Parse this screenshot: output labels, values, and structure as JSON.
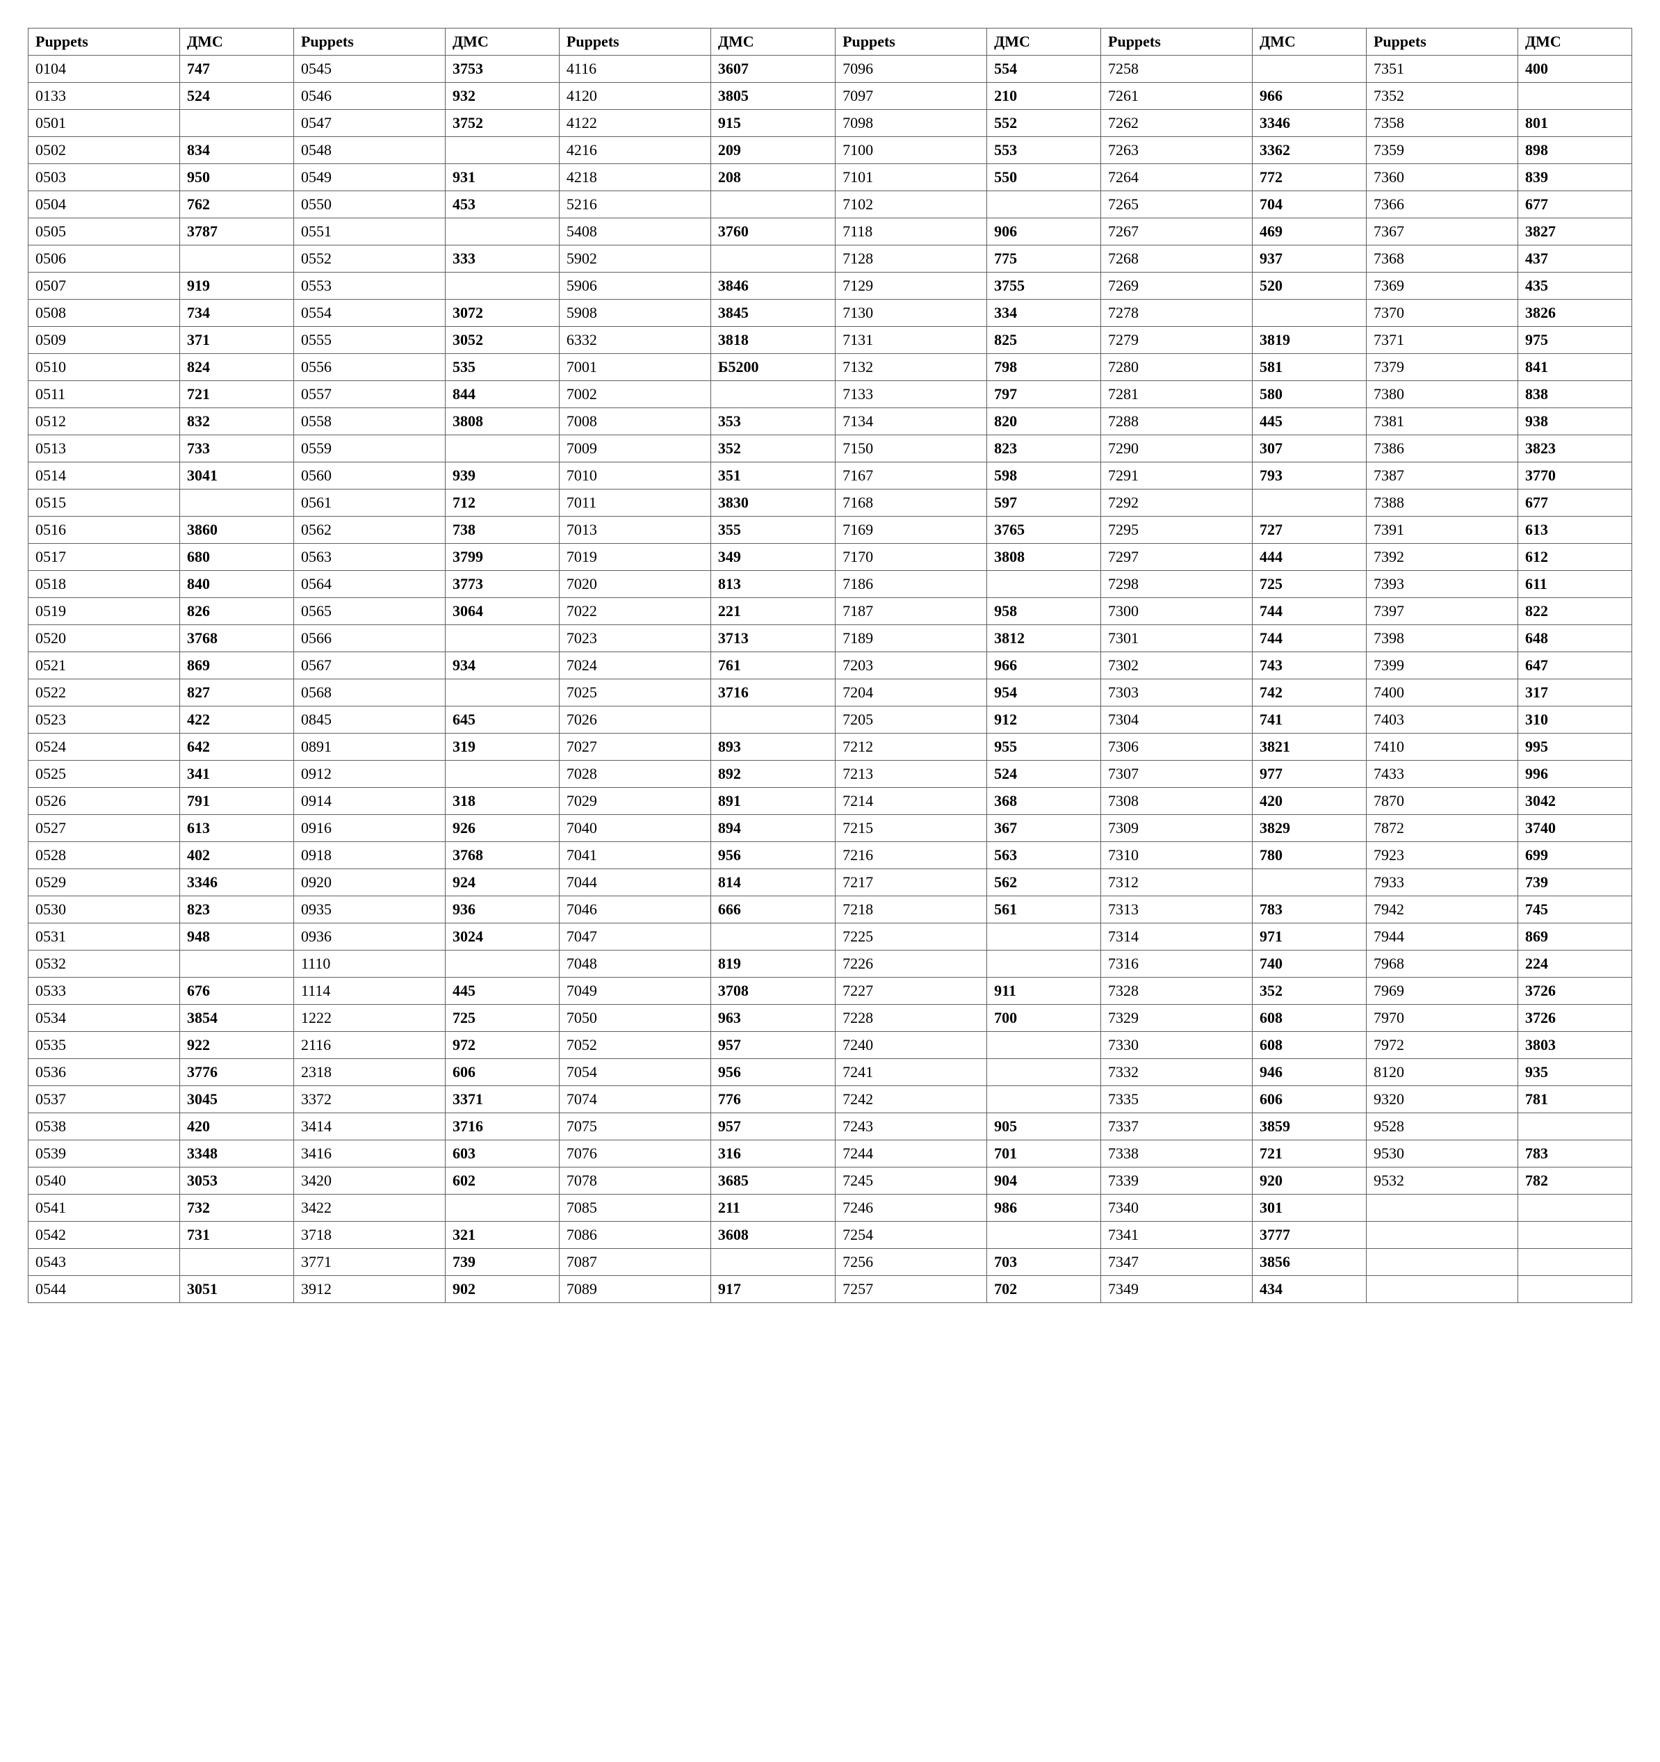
{
  "headers": [
    "Puppets",
    "ДМС",
    "Puppets",
    "ДМС",
    "Puppets",
    "ДМС",
    "Puppets",
    "ДМС",
    "Puppets",
    "ДМС",
    "Puppets",
    "ДМС"
  ],
  "rows": [
    [
      "0104",
      "747",
      "0545",
      "3753",
      "4116",
      "3607",
      "7096",
      "554",
      "7258",
      "",
      "7351",
      "400"
    ],
    [
      "0133",
      "524",
      "0546",
      "932",
      "4120",
      "3805",
      "7097",
      "210",
      "7261",
      "966",
      "7352",
      ""
    ],
    [
      "0501",
      "",
      "0547",
      "3752",
      "4122",
      "915",
      "7098",
      "552",
      "7262",
      "3346",
      "7358",
      "801"
    ],
    [
      "0502",
      "834",
      "0548",
      "",
      "4216",
      "209",
      "7100",
      "553",
      "7263",
      "3362",
      "7359",
      "898"
    ],
    [
      "0503",
      "950",
      "0549",
      "931",
      "4218",
      "208",
      "7101",
      "550",
      "7264",
      "772",
      "7360",
      "839"
    ],
    [
      "0504",
      "762",
      "0550",
      "453",
      "5216",
      "",
      "7102",
      "",
      "7265",
      "704",
      "7366",
      "677"
    ],
    [
      "0505",
      "3787",
      "0551",
      "",
      "5408",
      "3760",
      "7118",
      "906",
      "7267",
      "469",
      "7367",
      "3827"
    ],
    [
      "0506",
      "",
      "0552",
      "333",
      "5902",
      "",
      "7128",
      "775",
      "7268",
      "937",
      "7368",
      "437"
    ],
    [
      "0507",
      "919",
      "0553",
      "",
      "5906",
      "3846",
      "7129",
      "3755",
      "7269",
      "520",
      "7369",
      "435"
    ],
    [
      "0508",
      "734",
      "0554",
      "3072",
      "5908",
      "3845",
      "7130",
      "334",
      "7278",
      "",
      "7370",
      "3826"
    ],
    [
      "0509",
      "371",
      "0555",
      "3052",
      "6332",
      "3818",
      "7131",
      "825",
      "7279",
      "3819",
      "7371",
      "975"
    ],
    [
      "0510",
      "824",
      "0556",
      "535",
      "7001",
      "Б5200",
      "7132",
      "798",
      "7280",
      "581",
      "7379",
      "841"
    ],
    [
      "0511",
      "721",
      "0557",
      "844",
      "7002",
      "",
      "7133",
      "797",
      "7281",
      "580",
      "7380",
      "838"
    ],
    [
      "0512",
      "832",
      "0558",
      "3808",
      "7008",
      "353",
      "7134",
      "820",
      "7288",
      "445",
      "7381",
      "938"
    ],
    [
      "0513",
      "733",
      "0559",
      "",
      "7009",
      "352",
      "7150",
      "823",
      "7290",
      "307",
      "7386",
      "3823"
    ],
    [
      "0514",
      "3041",
      "0560",
      "939",
      "7010",
      "351",
      "7167",
      "598",
      "7291",
      "793",
      "7387",
      "3770"
    ],
    [
      "0515",
      "",
      "0561",
      "712",
      "7011",
      "3830",
      "7168",
      "597",
      "7292",
      "",
      "7388",
      "677"
    ],
    [
      "0516",
      "3860",
      "0562",
      "738",
      "7013",
      "355",
      "7169",
      "3765",
      "7295",
      "727",
      "7391",
      "613"
    ],
    [
      "0517",
      "680",
      "0563",
      "3799",
      "7019",
      "349",
      "7170",
      "3808",
      "7297",
      "444",
      "7392",
      "612"
    ],
    [
      "0518",
      "840",
      "0564",
      "3773",
      "7020",
      "813",
      "7186",
      "",
      "7298",
      "725",
      "7393",
      "611"
    ],
    [
      "0519",
      "826",
      "0565",
      "3064",
      "7022",
      "221",
      "7187",
      "958",
      "7300",
      "744",
      "7397",
      "822"
    ],
    [
      "0520",
      "3768",
      "0566",
      "",
      "7023",
      "3713",
      "7189",
      "3812",
      "7301",
      "744",
      "7398",
      "648"
    ],
    [
      "0521",
      "869",
      "0567",
      "934",
      "7024",
      "761",
      "7203",
      "966",
      "7302",
      "743",
      "7399",
      "647"
    ],
    [
      "0522",
      "827",
      "0568",
      "",
      "7025",
      "3716",
      "7204",
      "954",
      "7303",
      "742",
      "7400",
      "317"
    ],
    [
      "0523",
      "422",
      "0845",
      "645",
      "7026",
      "",
      "7205",
      "912",
      "7304",
      "741",
      "7403",
      "310"
    ],
    [
      "0524",
      "642",
      "0891",
      "319",
      "7027",
      "893",
      "7212",
      "955",
      "7306",
      "3821",
      "7410",
      "995"
    ],
    [
      "0525",
      "341",
      "0912",
      "",
      "7028",
      "892",
      "7213",
      "524",
      "7307",
      "977",
      "7433",
      "996"
    ],
    [
      "0526",
      "791",
      "0914",
      "318",
      "7029",
      "891",
      "7214",
      "368",
      "7308",
      "420",
      "7870",
      "3042"
    ],
    [
      "0527",
      "613",
      "0916",
      "926",
      "7040",
      "894",
      "7215",
      "367",
      "7309",
      "3829",
      "7872",
      "3740"
    ],
    [
      "0528",
      "402",
      "0918",
      "3768",
      "7041",
      "956",
      "7216",
      "563",
      "7310",
      "780",
      "7923",
      "699"
    ],
    [
      "0529",
      "3346",
      "0920",
      "924",
      "7044",
      "814",
      "7217",
      "562",
      "7312",
      "",
      "7933",
      "739"
    ],
    [
      "0530",
      "823",
      "0935",
      "936",
      "7046",
      "666",
      "7218",
      "561",
      "7313",
      "783",
      "7942",
      "745"
    ],
    [
      "0531",
      "948",
      "0936",
      "3024",
      "7047",
      "",
      "7225",
      "",
      "7314",
      "971",
      "7944",
      "869"
    ],
    [
      "0532",
      "",
      "1110",
      "",
      "7048",
      "819",
      "7226",
      "",
      "7316",
      "740",
      "7968",
      "224"
    ],
    [
      "0533",
      "676",
      "1114",
      "445",
      "7049",
      "3708",
      "7227",
      "911",
      "7328",
      "352",
      "7969",
      "3726"
    ],
    [
      "0534",
      "3854",
      "1222",
      "725",
      "7050",
      "963",
      "7228",
      "700",
      "7329",
      "608",
      "7970",
      "3726"
    ],
    [
      "0535",
      "922",
      "2116",
      "972",
      "7052",
      "957",
      "7240",
      "",
      "7330",
      "608",
      "7972",
      "3803"
    ],
    [
      "0536",
      "3776",
      "2318",
      "606",
      "7054",
      "956",
      "7241",
      "",
      "7332",
      "946",
      "8120",
      "935"
    ],
    [
      "0537",
      "3045",
      "3372",
      "3371",
      "7074",
      "776",
      "7242",
      "",
      "7335",
      "606",
      "9320",
      "781"
    ],
    [
      "0538",
      "420",
      "3414",
      "3716",
      "7075",
      "957",
      "7243",
      "905",
      "7337",
      "3859",
      "9528",
      ""
    ],
    [
      "0539",
      "3348",
      "3416",
      "603",
      "7076",
      "316",
      "7244",
      "701",
      "7338",
      "721",
      "9530",
      "783"
    ],
    [
      "0540",
      "3053",
      "3420",
      "602",
      "7078",
      "3685",
      "7245",
      "904",
      "7339",
      "920",
      "9532",
      "782"
    ],
    [
      "0541",
      "732",
      "3422",
      "",
      "7085",
      "211",
      "7246",
      "986",
      "7340",
      "301",
      "",
      ""
    ],
    [
      "0542",
      "731",
      "3718",
      "321",
      "7086",
      "3608",
      "7254",
      "",
      "7341",
      "3777",
      "",
      ""
    ],
    [
      "0543",
      "",
      "3771",
      "739",
      "7087",
      "",
      "7256",
      "703",
      "7347",
      "3856",
      "",
      ""
    ],
    [
      "0544",
      "3051",
      "3912",
      "902",
      "7089",
      "917",
      "7257",
      "702",
      "7349",
      "434",
      "",
      ""
    ]
  ],
  "bold_columns": [
    1,
    3,
    5,
    7,
    9,
    11
  ],
  "styling": {
    "background": "#ffffff",
    "border_color": "#606060",
    "font_family": "Times New Roman",
    "header_fontsize": 22,
    "cell_fontsize": 22,
    "cell_padding": "4px 10px"
  }
}
